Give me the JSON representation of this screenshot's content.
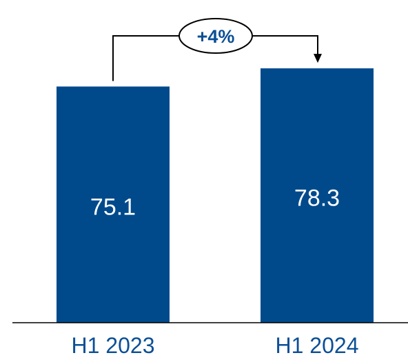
{
  "chart_data": {
    "type": "bar",
    "categories": [
      "H1 2023",
      "H1 2024"
    ],
    "values": [
      75.1,
      78.3
    ],
    "value_labels": [
      "75.1",
      "78.3"
    ],
    "change_annotation": "+4%",
    "ylim": [
      0,
      80
    ],
    "grid": false,
    "legend": "none",
    "colors": {
      "bar": "#004A8C",
      "label": "#0B4F96",
      "axis": "#000000",
      "connector": "#000000",
      "bubble_border": "#000000",
      "bubble_fill": "#ffffff"
    }
  }
}
